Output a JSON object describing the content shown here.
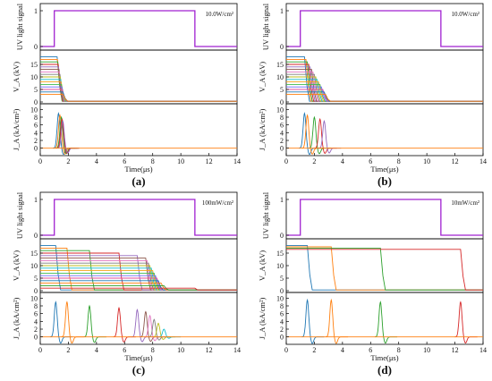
{
  "figure": {
    "x_axis_label": "Time(μs)",
    "y_axis_labels": {
      "uv": "UV light signal",
      "voltage": "V_A (kV)",
      "current": "J_A (kA/cm²)"
    },
    "x_ticks": [
      "0",
      "2",
      "4",
      "6",
      "8",
      "10",
      "12",
      "14"
    ],
    "uv_ticks": [
      "0",
      "1"
    ],
    "voltage_ticks": [
      "0",
      "5",
      "10",
      "15"
    ],
    "current_ticks": [
      "0",
      "2",
      "4",
      "6",
      "8",
      "10"
    ],
    "colors": {
      "uv": "#a020d0",
      "axis": "#000000",
      "palette": [
        "#1f77b4",
        "#ff7f0e",
        "#2ca02c",
        "#d62728",
        "#9467bd",
        "#8c564b",
        "#e377c2",
        "#7f7f7f",
        "#bcbd22",
        "#17becf",
        "#f4a21c",
        "#3fb950",
        "#6b6bff",
        "#e0529c"
      ]
    }
  },
  "chart_data": [
    {
      "type": "line",
      "panel_label": "(a)",
      "intensity_label": "10.0W/cm²",
      "x_range": [
        0,
        14
      ],
      "uv_signal": {
        "on": 1.0,
        "off": 11.0,
        "ylim": [
          0,
          1
        ]
      },
      "voltage": {
        "ylim": [
          0,
          20
        ],
        "initial_kV": [
          18,
          17,
          16,
          15,
          14,
          13,
          12,
          11,
          10,
          9,
          8,
          7,
          6,
          5,
          4,
          3
        ],
        "turn_off_us": [
          1.2,
          1.22,
          1.25,
          1.28,
          1.3,
          1.33,
          1.36,
          1.4,
          1.42,
          1.45,
          1.48,
          1.5,
          1.53,
          1.56,
          1.6,
          1.62
        ]
      },
      "current": {
        "ylim": [
          -1,
          11
        ],
        "peaks": [
          {
            "t": 1.3,
            "peak": 9
          },
          {
            "t": 1.4,
            "peak": 8.5
          },
          {
            "t": 1.5,
            "peak": 8
          },
          {
            "t": 1.55,
            "peak": 7.5
          },
          {
            "t": 1.6,
            "peak": 7
          }
        ]
      }
    },
    {
      "type": "line",
      "panel_label": "(b)",
      "intensity_label": "10.0W/cm²",
      "x_range": [
        0,
        14
      ],
      "uv_signal": {
        "on": 1.0,
        "off": 11.0,
        "ylim": [
          0,
          1
        ]
      },
      "voltage": {
        "ylim": [
          0,
          20
        ],
        "initial_kV": [
          18,
          17,
          16,
          15,
          14,
          13,
          12,
          11,
          10,
          9,
          8,
          7,
          6,
          5,
          4,
          3
        ],
        "turn_off_us": [
          1.3,
          1.4,
          1.5,
          1.6,
          1.7,
          1.8,
          1.9,
          2.0,
          2.1,
          2.2,
          2.3,
          2.4,
          2.5,
          2.6,
          2.7,
          2.8
        ]
      },
      "current": {
        "ylim": [
          -1,
          11
        ],
        "peaks": [
          {
            "t": 1.3,
            "peak": 9
          },
          {
            "t": 1.5,
            "peak": 8.5
          },
          {
            "t": 2.0,
            "peak": 8
          },
          {
            "t": 2.4,
            "peak": 7.5
          },
          {
            "t": 2.7,
            "peak": 7
          }
        ]
      }
    },
    {
      "type": "line",
      "panel_label": "(c)",
      "intensity_label": "100mW/cm²",
      "x_range": [
        0,
        14
      ],
      "uv_signal": {
        "on": 1.0,
        "off": 11.0,
        "ylim": [
          0,
          1
        ]
      },
      "voltage": {
        "ylim": [
          0,
          20
        ],
        "initial_kV": [
          18,
          17,
          16,
          15,
          14,
          13,
          12,
          11,
          10,
          9,
          8,
          7,
          6,
          5,
          4,
          3,
          2,
          1
        ],
        "turn_off_us": [
          1.1,
          1.9,
          3.5,
          5.6,
          6.9,
          7.5,
          7.6,
          7.7,
          7.8,
          7.9,
          8.0,
          8.1,
          8.2,
          8.3,
          8.4,
          8.6,
          8.8,
          11.0
        ]
      },
      "current": {
        "ylim": [
          -1,
          11
        ],
        "peaks": [
          {
            "t": 1.1,
            "peak": 9
          },
          {
            "t": 1.9,
            "peak": 9
          },
          {
            "t": 3.5,
            "peak": 8
          },
          {
            "t": 5.6,
            "peak": 7.5
          },
          {
            "t": 6.9,
            "peak": 7
          },
          {
            "t": 7.5,
            "peak": 6.5
          },
          {
            "t": 7.8,
            "peak": 5.5
          },
          {
            "t": 8.1,
            "peak": 4.5
          },
          {
            "t": 8.4,
            "peak": 3.5
          },
          {
            "t": 8.8,
            "peak": 2
          }
        ]
      }
    },
    {
      "type": "line",
      "panel_label": "(d)",
      "intensity_label": "10mW/cm²",
      "x_range": [
        0,
        14
      ],
      "uv_signal": {
        "on": 1.0,
        "off": 11.0,
        "ylim": [
          0,
          1
        ]
      },
      "voltage": {
        "ylim": [
          0,
          20
        ],
        "initial_kV": [
          18,
          17.5,
          17,
          16.5
        ],
        "turn_off_us": [
          1.5,
          3.2,
          6.7,
          12.4
        ]
      },
      "current": {
        "ylim": [
          -1,
          11
        ],
        "peaks": [
          {
            "t": 1.5,
            "peak": 9.5
          },
          {
            "t": 3.2,
            "peak": 9.5
          },
          {
            "t": 6.7,
            "peak": 9
          },
          {
            "t": 12.4,
            "peak": 9
          }
        ]
      }
    }
  ]
}
